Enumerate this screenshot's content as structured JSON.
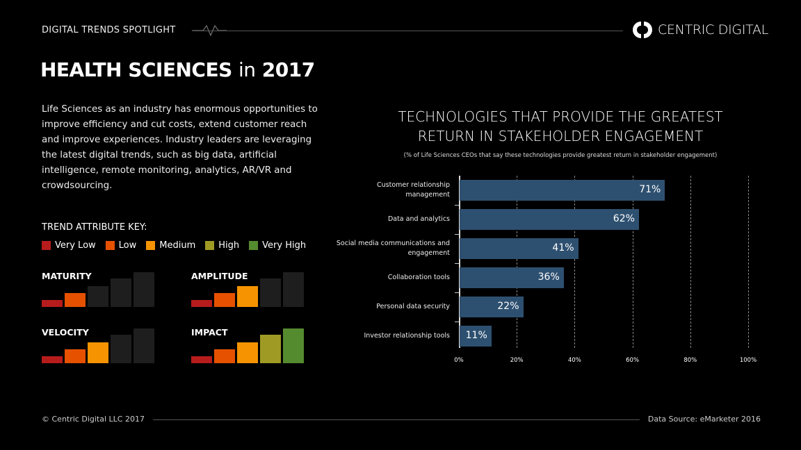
{
  "header": {
    "kicker": "DIGITAL TRENDS SPOTLIGHT",
    "logo_text": "CENTRIC DIGITAL",
    "logo_icon": "circular-arrows-icon"
  },
  "title": {
    "bold": "HEALTH SCIENCES",
    "light": "in",
    "year": "2017"
  },
  "intro": "Life Sciences as an industry has enormous opportunities to improve efficiency and cut costs, extend customer reach and improve experiences. Industry leaders are leveraging the latest digital trends, such as big data, artificial intelligence, remote monitoring, analytics, AR/VR and crowdsourcing.",
  "key": {
    "title": "TREND ATTRIBUTE KEY:",
    "levels": [
      {
        "label": "Very Low",
        "color": "#b71c1c"
      },
      {
        "label": "Low",
        "color": "#e65100"
      },
      {
        "label": "Medium",
        "color": "#f59300"
      },
      {
        "label": "High",
        "color": "#9e9a24"
      },
      {
        "label": "Very High",
        "color": "#558b2f"
      }
    ]
  },
  "attributes": [
    {
      "label": "MATURITY",
      "level": 2
    },
    {
      "label": "AMPLITUDE",
      "level": 3
    },
    {
      "label": "VELOCITY",
      "level": 3
    },
    {
      "label": "IMPACT",
      "level": 5
    }
  ],
  "chart_data": {
    "type": "bar",
    "orientation": "horizontal",
    "title": "TECHNOLOGIES THAT PROVIDE THE GREATEST RETURN IN STAKEHOLDER ENGAGEMENT",
    "subtitle": "(% of Life Sciences CEOs that say these technologies provide greatest return in stakeholder engagement)",
    "categories": [
      "Customer relationship management",
      "Data and analytics",
      "Social media communications and engagement",
      "Collaboration tools",
      "Personal data security",
      "Investor relationship tools"
    ],
    "values": [
      71,
      62,
      41,
      36,
      22,
      11
    ],
    "value_labels": [
      "71%",
      "62%",
      "41%",
      "36%",
      "22%",
      "11%"
    ],
    "xlim": [
      0,
      100
    ],
    "ticks": [
      "0%",
      "20%",
      "40%",
      "60%",
      "80%",
      "100%"
    ],
    "grid": true,
    "bar_color": "#2e5070"
  },
  "footer": {
    "copyright": "© Centric Digital LLC 2017",
    "source": "Data Source: eMarketer 2016"
  }
}
